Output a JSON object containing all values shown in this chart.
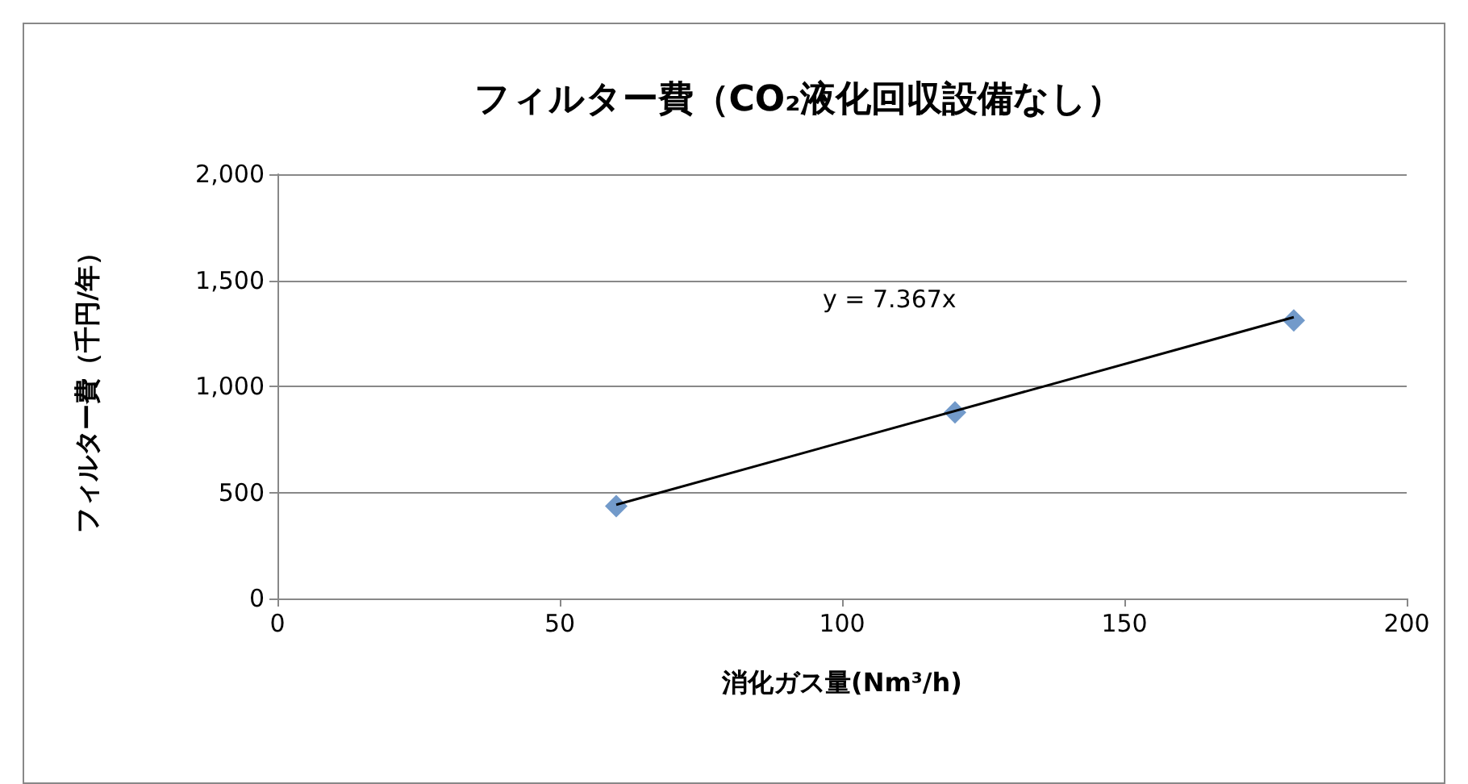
{
  "chart_data": {
    "type": "scatter",
    "title": "フィルター費（CO₂液化回収設備なし）",
    "xlabel": "消化ガス量(Nm³/h)",
    "ylabel": "フィルター費（千円/年）",
    "series": [
      {
        "color": "#4f81bd",
        "marker": "diamond",
        "x": [
          60,
          120,
          180
        ],
        "values": [
          435,
          877,
          1311
        ]
      },
      {
        "type": "line",
        "color": "#000000",
        "marker": "none",
        "x": [
          60,
          180
        ],
        "values": [
          442,
          1326
        ]
      }
    ],
    "annotations": [
      "y = 7.367x"
    ],
    "xlim": [
      0,
      200
    ],
    "xticks": [
      0,
      50,
      100,
      150,
      200
    ],
    "ylim": [
      0,
      2000
    ],
    "yticks": [
      0,
      500,
      {
        "value": 1000,
        "label": "1,000"
      },
      {
        "value": 1500,
        "label": "1,500"
      },
      {
        "value": 2000,
        "label": "2,000"
      }
    ],
    "grid": "y"
  }
}
